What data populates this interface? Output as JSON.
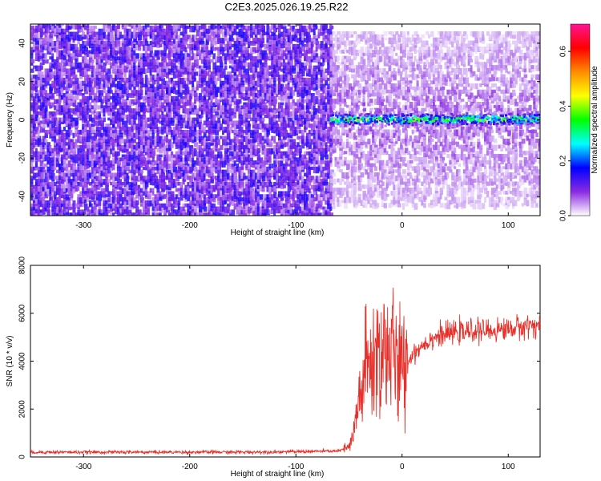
{
  "title": "C2E3.2025.026.19.25.R22",
  "chart_data": [
    {
      "type": "heatmap",
      "title": "",
      "xlabel": "Height of straight line (km)",
      "ylabel": "Frequency (Hz)",
      "xlim": [
        -350,
        130
      ],
      "ylim": [
        -50,
        50
      ],
      "x_ticks": [
        -300,
        -200,
        -100,
        0,
        100
      ],
      "y_ticks": [
        -40,
        -20,
        0,
        20,
        40
      ],
      "colorbar": {
        "label": "Normalized spectral amplitude",
        "range": [
          0.0,
          0.7
        ],
        "ticks": [
          0.0,
          0.2,
          0.4,
          0.6
        ],
        "colors": [
          "#ffffff",
          "#8a2be2",
          "#0000ff",
          "#00ffff",
          "#00ff00",
          "#ffff00",
          "#ff8c00",
          "#ff0000",
          "#ff1493"
        ]
      },
      "noise_regions": [
        {
          "x_range": [
            -350,
            -68
          ],
          "freq_range": [
            -50,
            50
          ],
          "typical_amplitude": 0.1
        },
        {
          "x_range": [
            -68,
            130
          ],
          "freq_range": [
            -45,
            45
          ],
          "typical_amplitude": 0.06
        }
      ],
      "signal_band": {
        "x_range": [
          -68,
          130
        ],
        "frequency": 0,
        "peak_amplitude": 0.4
      }
    },
    {
      "type": "line",
      "title": "",
      "xlabel": "Height of straight line (km)",
      "ylabel": "SNR (10 * v/v)",
      "xlim": [
        -350,
        130
      ],
      "ylim": [
        0,
        8000
      ],
      "x_ticks": [
        -300,
        -200,
        -100,
        0,
        100
      ],
      "y_ticks": [
        0,
        2000,
        4000,
        6000,
        8000
      ],
      "series": [
        {
          "color": "#e8302a",
          "x": [
            -350,
            -300,
            -250,
            -200,
            -150,
            -100,
            -60,
            -50,
            -45,
            -40,
            -35,
            -30,
            -25,
            -20,
            -15,
            -10,
            -5,
            0,
            5,
            10,
            20,
            30,
            40,
            50,
            60,
            70,
            80,
            90,
            100,
            110,
            120,
            130
          ],
          "y": [
            200,
            200,
            200,
            200,
            200,
            220,
            250,
            400,
            1000,
            2600,
            3500,
            3800,
            4200,
            4400,
            4600,
            4300,
            4000,
            3500,
            3900,
            4300,
            4700,
            5000,
            5100,
            5200,
            5200,
            5300,
            5250,
            5300,
            5350,
            5400,
            5500,
            5500
          ]
        }
      ]
    }
  ]
}
